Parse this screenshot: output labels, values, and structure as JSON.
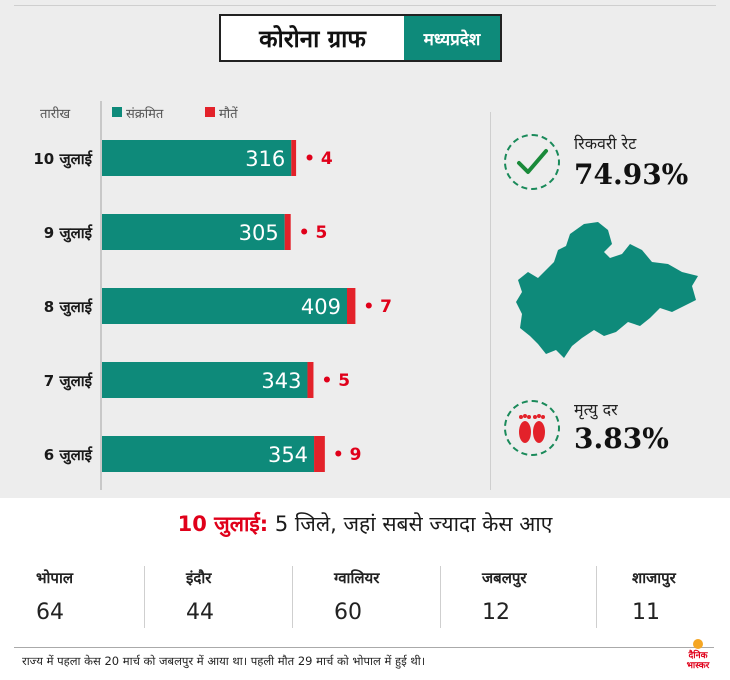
{
  "header": {
    "title": "कोरोना ग्राफ",
    "region": "मध्यप्रदेश"
  },
  "legend": {
    "date_label": "तारीख",
    "infected_label": "संक्रमित",
    "deaths_label": "मौतें"
  },
  "colors": {
    "infected": "#0e8a7a",
    "deaths": "#e3222a",
    "accent": "#e0001a"
  },
  "chart_data": {
    "type": "bar",
    "orientation": "horizontal",
    "categories": [
      "10 जुलाई",
      "9 जुलाई",
      "8 जुलाई",
      "7 जुलाई",
      "6 जुलाई"
    ],
    "series": [
      {
        "name": "संक्रमित",
        "values": [
          316,
          305,
          409,
          343,
          354
        ]
      },
      {
        "name": "मौतें",
        "values": [
          4,
          5,
          7,
          5,
          9
        ]
      }
    ],
    "death_labels": [
      "• 4",
      "• 5",
      "• 7",
      "• 5",
      "• 9"
    ]
  },
  "stats": {
    "recovery": {
      "label": "रिकवरी रेट",
      "value": "74.93%",
      "icon": "check-icon"
    },
    "mortality": {
      "label": "मृत्यु दर",
      "value": "3.83%",
      "icon": "footprints-icon"
    }
  },
  "districts": {
    "heading_date": "10 जुलाई:",
    "heading_rest": " 5 जिले, जहां सबसे ज्यादा केस आए",
    "items": [
      {
        "name": "भोपाल",
        "value": "64"
      },
      {
        "name": "इंदौर",
        "value": "44"
      },
      {
        "name": "ग्वालियर",
        "value": "60"
      },
      {
        "name": "जबलपुर",
        "value": "12"
      },
      {
        "name": "शाजापुर",
        "value": "11"
      }
    ]
  },
  "footnote": "राज्य में पहला केस 20 मार्च को जबलपुर में आया था। पहली मौत 29 मार्च को भोपाल में हुई थी।",
  "brand": {
    "logo_line1": "दैनिक",
    "logo_line2": "भास्कर",
    "logo_color": "#e0001a"
  }
}
